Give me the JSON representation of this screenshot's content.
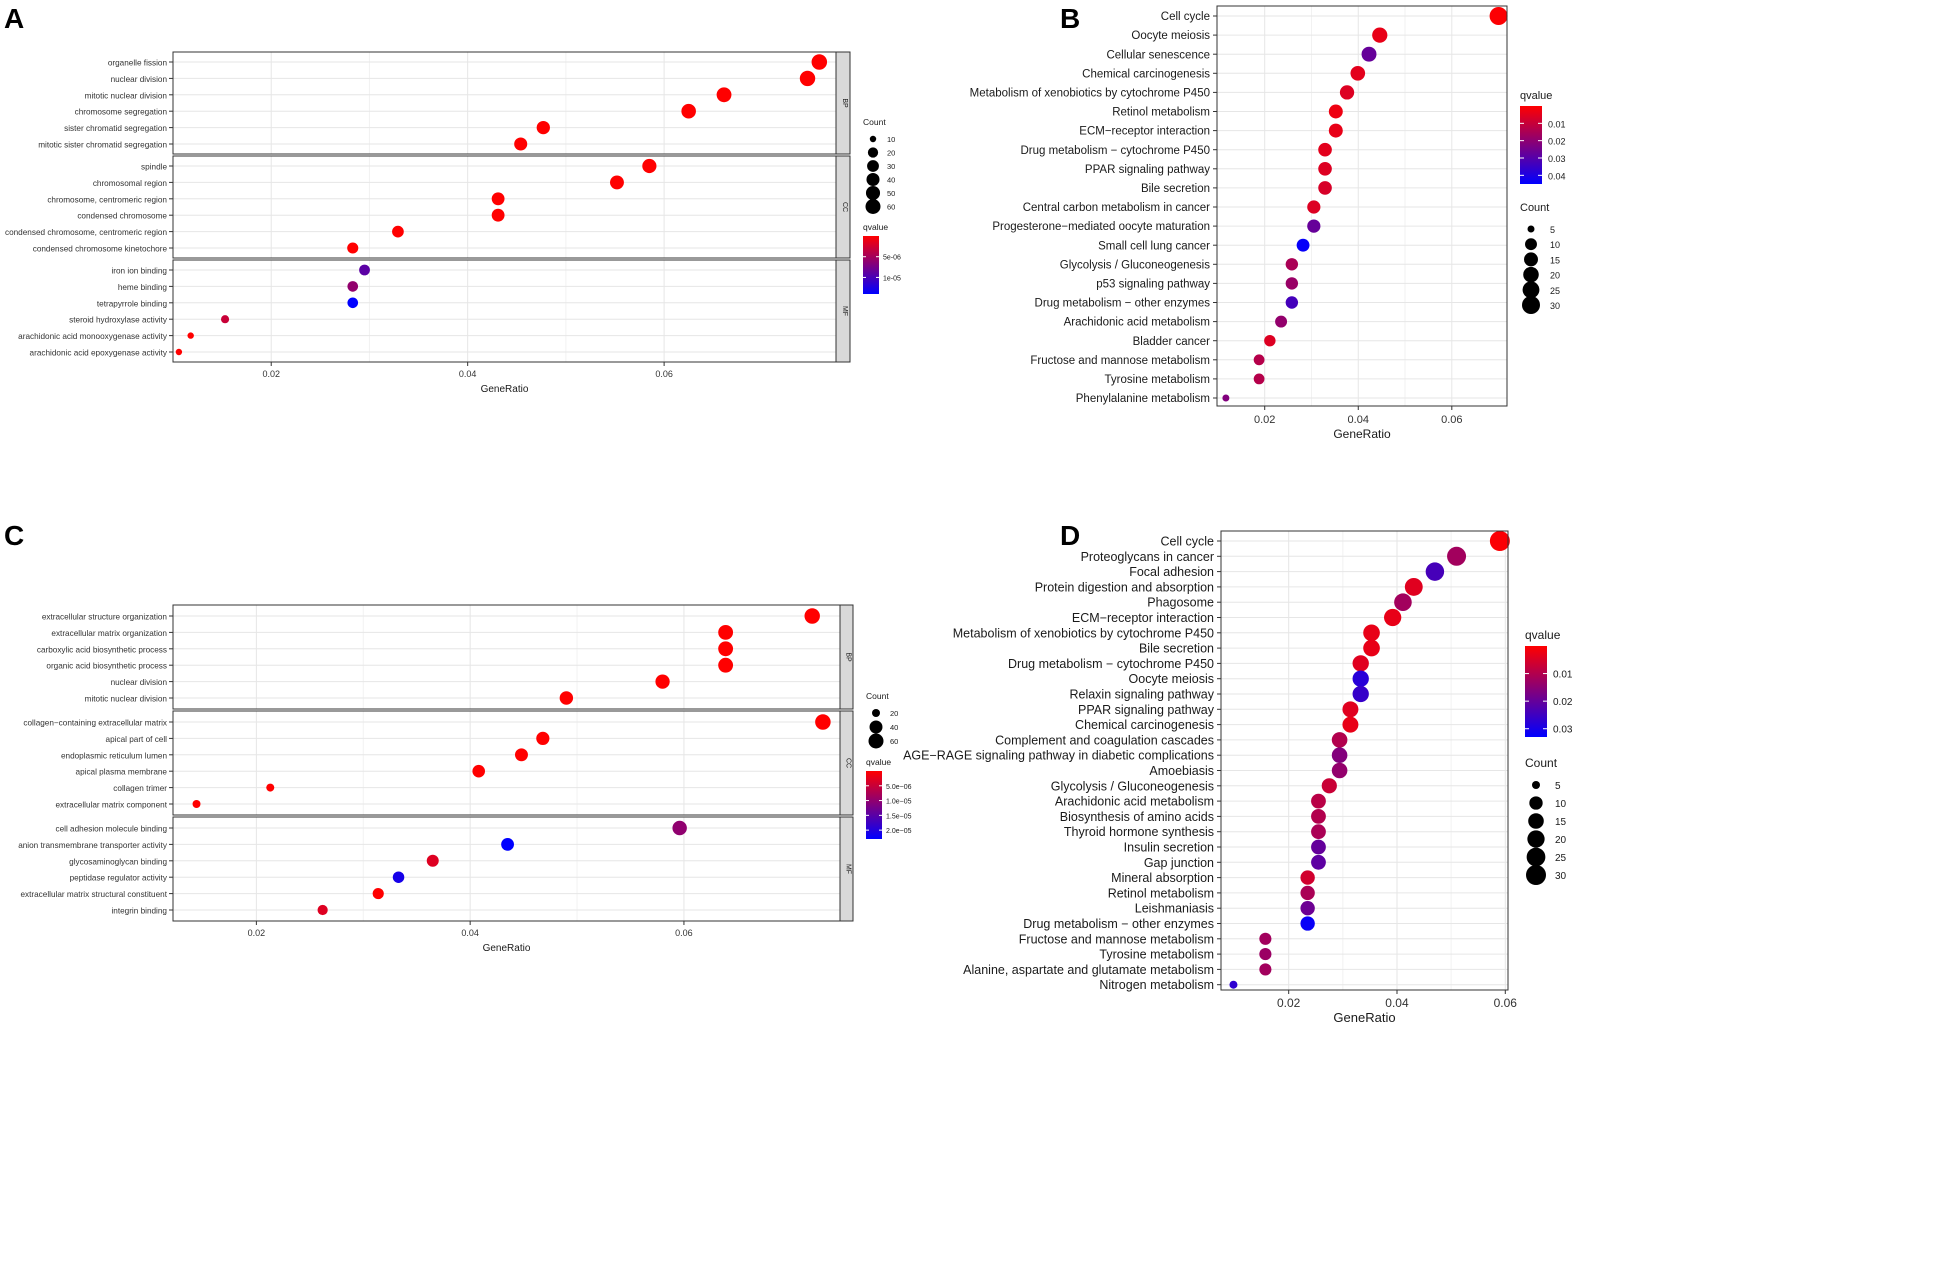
{
  "figure": {
    "panel_labels": [
      "A",
      "B",
      "C",
      "D"
    ]
  },
  "chart_data": [
    {
      "panel": "A",
      "type": "scatter",
      "xlabel": "GeneRatio",
      "xlim": [
        0.01,
        0.0775
      ],
      "xticks": [
        0.02,
        0.04,
        0.06
      ],
      "xtick_labels": [
        "0.02",
        "0.04",
        "0.06"
      ],
      "grid": true,
      "facets": [
        {
          "name": "BP",
          "terms": [
            "organelle fission",
            "nuclear division",
            "mitotic nuclear division",
            "chromosome segregation",
            "sister chromatid segregation",
            "mitotic sister chromatid segregation"
          ],
          "x": [
            0.0758,
            0.0746,
            0.0661,
            0.0625,
            0.0477,
            0.0454
          ],
          "count": [
            66,
            65,
            58,
            55,
            42,
            40
          ],
          "qvalue": [
            1e-09,
            1e-09,
            1e-09,
            1e-09,
            1e-09,
            1e-09
          ]
        },
        {
          "name": "CC",
          "terms": [
            "spindle",
            "chromosomal region",
            "chromosome, centromeric region",
            "condensed chromosome",
            "condensed chromosome, centromeric region",
            "condensed chromosome kinetochore"
          ],
          "x": [
            0.0585,
            0.0552,
            0.0431,
            0.0431,
            0.0329,
            0.0283
          ],
          "count": [
            51,
            48,
            38,
            38,
            29,
            25
          ],
          "qvalue": [
            1e-09,
            1e-09,
            1e-09,
            1e-09,
            1e-09,
            1e-09
          ]
        },
        {
          "name": "MF",
          "terms": [
            "iron ion binding",
            "heme binding",
            "tetrapyrrole binding",
            "steroid hydroxylase activity",
            "arachidonic acid monooxygenase activity",
            "arachidonic acid epoxygenase activity"
          ],
          "x": [
            0.0295,
            0.0283,
            0.0283,
            0.0153,
            0.0118,
            0.0106
          ],
          "count": [
            23,
            22,
            22,
            12,
            9,
            8
          ],
          "qvalue": [
            9e-06,
            6e-06,
            1.4e-05,
            3e-06,
            1e-09,
            1e-09
          ]
        }
      ],
      "size_legend": {
        "title": "Count",
        "values": [
          10,
          20,
          30,
          40,
          50,
          60
        ]
      },
      "color_legend": {
        "title": "qvalue",
        "ticks": [
          5e-06,
          1e-05
        ],
        "tick_labels": [
          "5e-06",
          "1e-05"
        ],
        "range": [
          0,
          1.4e-05
        ],
        "low_color": "#ff0000",
        "high_color": "#0000ff"
      }
    },
    {
      "panel": "B",
      "type": "scatter",
      "xlabel": "GeneRatio",
      "xlim": [
        0.0098,
        0.0718
      ],
      "xticks": [
        0.02,
        0.04,
        0.06
      ],
      "xtick_labels": [
        "0.02",
        "0.04",
        "0.06"
      ],
      "grid": true,
      "terms": [
        "Cell cycle",
        "Oocyte meiosis",
        "Cellular senescence",
        "Chemical carcinogenesis",
        "Metabolism of xenobiotics by cytochrome P450",
        "Retinol metabolism",
        "ECM−receptor interaction",
        "Drug metabolism − cytochrome P450",
        "PPAR signaling pathway",
        "Bile secretion",
        "Central carbon metabolism in cancer",
        "Progesterone−mediated oocyte maturation",
        "Small cell lung cancer",
        "Glycolysis / Gluconeogenesis",
        "p53 signaling pathway",
        "Drug metabolism − other enzymes",
        "Arachidonic acid metabolism",
        "Bladder cancer",
        "Fructose and mannose metabolism",
        "Tyrosine metabolism",
        "Phenylalanine metabolism"
      ],
      "x": [
        0.07,
        0.0446,
        0.0423,
        0.0399,
        0.0376,
        0.0352,
        0.0352,
        0.0329,
        0.0329,
        0.0329,
        0.0305,
        0.0305,
        0.0282,
        0.0258,
        0.0258,
        0.0258,
        0.0235,
        0.0211,
        0.0188,
        0.0188,
        0.0117
      ],
      "count": [
        30,
        19,
        18,
        17,
        16,
        15,
        15,
        14,
        14,
        14,
        13,
        13,
        12,
        11,
        11,
        11,
        10,
        9,
        8,
        8,
        5
      ],
      "qvalue": [
        0.0005,
        0.004,
        0.027,
        0.005,
        0.006,
        0.003,
        0.004,
        0.005,
        0.006,
        0.007,
        0.006,
        0.027,
        0.044,
        0.015,
        0.018,
        0.033,
        0.019,
        0.006,
        0.013,
        0.013,
        0.022
      ],
      "size_legend": {
        "title": "Count",
        "values": [
          5,
          10,
          15,
          20,
          25,
          30
        ]
      },
      "color_legend": {
        "title": "qvalue",
        "ticks": [
          0.01,
          0.02,
          0.03,
          0.04
        ],
        "tick_labels": [
          "0.01",
          "0.02",
          "0.03",
          "0.04"
        ],
        "range": [
          0,
          0.045
        ],
        "low_color": "#ff0000",
        "high_color": "#0000ff"
      }
    },
    {
      "panel": "C",
      "type": "scatter",
      "xlabel": "GeneRatio",
      "xlim": [
        0.0122,
        0.0746
      ],
      "xticks": [
        0.02,
        0.04,
        0.06
      ],
      "xtick_labels": [
        "0.02",
        "0.04",
        "0.06"
      ],
      "grid": true,
      "facets": [
        {
          "name": "BP",
          "terms": [
            "extracellular structure organization",
            "extracellular matrix organization",
            "carboxylic acid biosynthetic process",
            "organic acid biosynthetic process",
            "nuclear division",
            "mitotic nuclear division"
          ],
          "x": [
            0.072,
            0.0639,
            0.0639,
            0.0639,
            0.058,
            0.049
          ],
          "count": [
            65,
            58,
            58,
            58,
            52,
            44
          ],
          "qvalue": [
            1e-09,
            1e-09,
            1e-09,
            1e-09,
            1e-09,
            1e-09
          ]
        },
        {
          "name": "CC",
          "terms": [
            "collagen−containing extracellular matrix",
            "apical part of cell",
            "endoplasmic reticulum lumen",
            "apical plasma membrane",
            "collagen trimer",
            "extracellular matrix component"
          ],
          "x": [
            0.073,
            0.0468,
            0.0448,
            0.0408,
            0.0213,
            0.0144
          ],
          "count": [
            66,
            42,
            40,
            37,
            19,
            13
          ],
          "qvalue": [
            1e-09,
            1e-09,
            1e-09,
            1e-09,
            1e-09,
            1e-09
          ]
        },
        {
          "name": "MF",
          "terms": [
            "cell adhesion molecule binding",
            "anion transmembrane transporter activity",
            "glycosaminoglycan binding",
            "peptidase regulator activity",
            "extracellular matrix structural constituent",
            "integrin binding"
          ],
          "x": [
            0.0596,
            0.0435,
            0.0365,
            0.0333,
            0.0314,
            0.0262
          ],
          "count": [
            54,
            39,
            33,
            30,
            28,
            24
          ],
          "qvalue": [
            1e-05,
            2.3e-05,
            3e-06,
            2.1e-05,
            1e-09,
            3e-06
          ]
        }
      ],
      "size_legend": {
        "title": "Count",
        "values": [
          20,
          40,
          60
        ]
      },
      "color_legend": {
        "title": "qvalue",
        "ticks": [
          5e-06,
          1e-05,
          1.5e-05,
          2e-05
        ],
        "tick_labels": [
          "5.0e−06",
          "1.0e−05",
          "1.5e−05",
          "2.0e−05"
        ],
        "range": [
          0,
          2.3e-05
        ],
        "low_color": "#ff0000",
        "high_color": "#0000ff"
      }
    },
    {
      "panel": "D",
      "type": "scatter",
      "xlabel": "GeneRatio",
      "xlim": [
        0.0075,
        0.0605
      ],
      "xticks": [
        0.02,
        0.04,
        0.06
      ],
      "xtick_labels": [
        "0.02",
        "0.04",
        "0.06"
      ],
      "grid": true,
      "terms": [
        "Cell cycle",
        "Proteoglycans in cancer",
        "Focal adhesion",
        "Protein digestion and absorption",
        "Phagosome",
        "ECM−receptor interaction",
        "Metabolism of xenobiotics by cytochrome P450",
        "Bile secretion",
        "Drug metabolism − cytochrome P450",
        "Oocyte meiosis",
        "Relaxin signaling pathway",
        "PPAR signaling pathway",
        "Chemical carcinogenesis",
        "Complement and coagulation cascades",
        "AGE−RAGE signaling pathway in diabetic complications",
        "Amoebiasis",
        "Glycolysis / Gluconeogenesis",
        "Arachidonic acid metabolism",
        "Biosynthesis of amino acids",
        "Thyroid hormone synthesis",
        "Insulin secretion",
        "Gap junction",
        "Mineral absorption",
        "Retinol metabolism",
        "Leishmaniasis",
        "Drug metabolism − other enzymes",
        "Fructose and mannose metabolism",
        "Tyrosine metabolism",
        "Alanine, aspartate and glutamate metabolism",
        "Nitrogen metabolism"
      ],
      "x": [
        0.059,
        0.051,
        0.047,
        0.0431,
        0.0411,
        0.0392,
        0.0353,
        0.0353,
        0.0333,
        0.0333,
        0.0333,
        0.0314,
        0.0314,
        0.0294,
        0.0294,
        0.0294,
        0.0275,
        0.0255,
        0.0255,
        0.0255,
        0.0255,
        0.0255,
        0.0235,
        0.0235,
        0.0235,
        0.0235,
        0.0157,
        0.0157,
        0.0157,
        0.0098
      ],
      "count": [
        30,
        26,
        24,
        22,
        21,
        20,
        18,
        18,
        17,
        17,
        17,
        16,
        16,
        15,
        15,
        15,
        14,
        13,
        13,
        13,
        13,
        13,
        12,
        12,
        12,
        12,
        8,
        8,
        8,
        5
      ],
      "qvalue": [
        0.0005,
        0.012,
        0.024,
        0.004,
        0.012,
        0.003,
        0.003,
        0.003,
        0.004,
        0.028,
        0.026,
        0.004,
        0.003,
        0.01,
        0.016,
        0.014,
        0.007,
        0.009,
        0.01,
        0.011,
        0.02,
        0.021,
        0.006,
        0.011,
        0.019,
        0.032,
        0.012,
        0.013,
        0.012,
        0.027
      ],
      "size_legend": {
        "title": "Count",
        "values": [
          5,
          10,
          15,
          20,
          25,
          30
        ]
      },
      "color_legend": {
        "title": "qvalue",
        "ticks": [
          0.01,
          0.02,
          0.03
        ],
        "tick_labels": [
          "0.01",
          "0.02",
          "0.03"
        ],
        "range": [
          0,
          0.033
        ],
        "low_color": "#ff0000",
        "high_color": "#0000ff"
      }
    }
  ]
}
